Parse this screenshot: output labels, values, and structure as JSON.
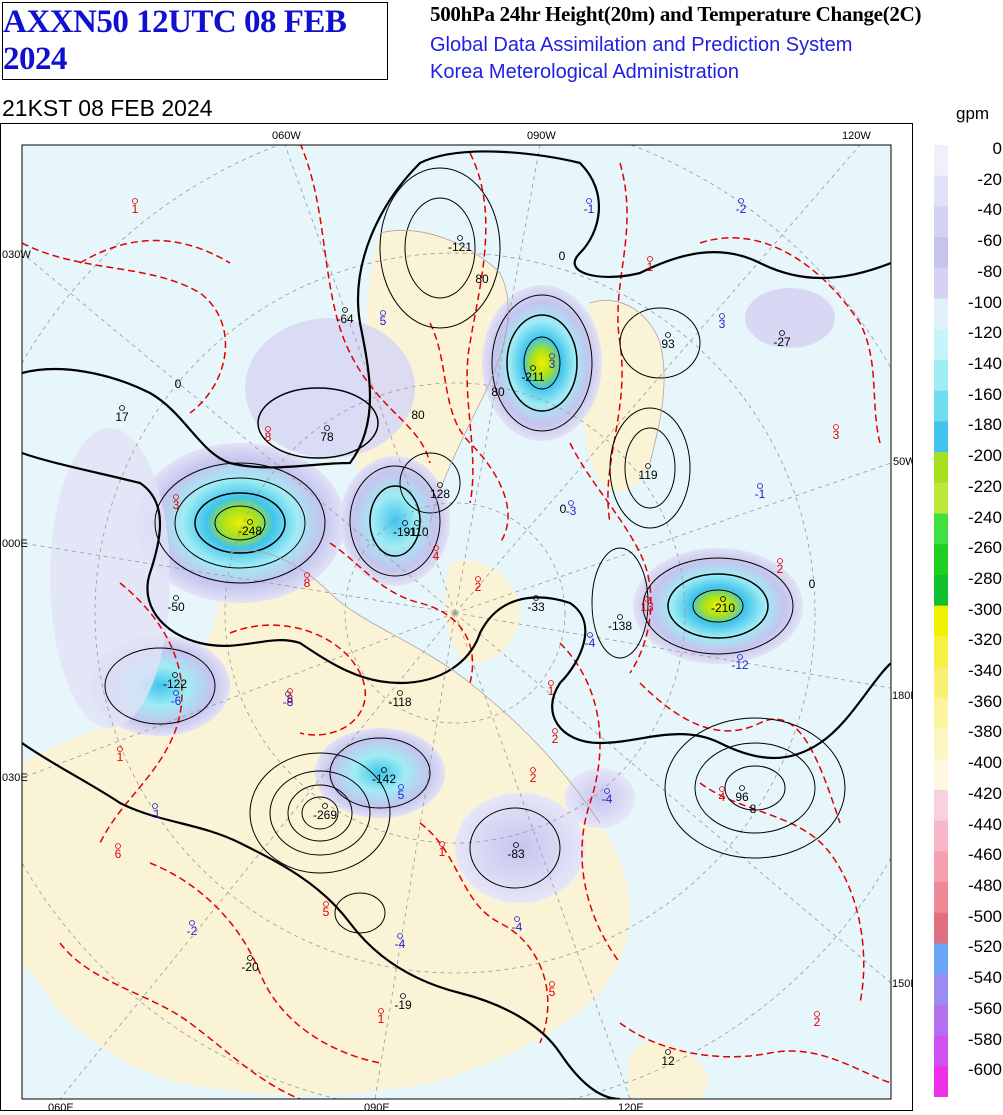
{
  "header": {
    "chart_code": "AXXN50 12UTC 08 FEB 2024",
    "product_title": "500hPa 24hr Height(20m) and Temperature Change(2C)",
    "agency_line_1": "Global Data Assimilation and Prediction System",
    "agency_line_2": "Korea Meterological Administration",
    "valid_time": "21KST 08 FEB 2024"
  },
  "legend": {
    "unit": "gpm",
    "levels": [
      "0",
      "-20",
      "-40",
      "-60",
      "-80",
      "-100",
      "-120",
      "-140",
      "-160",
      "-180",
      "-200",
      "-220",
      "-240",
      "-260",
      "-280",
      "-300",
      "-320",
      "-340",
      "-360",
      "-380",
      "-400",
      "-420",
      "-440",
      "-460",
      "-480",
      "-500",
      "-520",
      "-540",
      "-560",
      "-580",
      "-600"
    ],
    "colors": [
      "#f0f0fa",
      "#e2e2f6",
      "#d2d2f2",
      "#c4c4ee",
      "#d6d0f4",
      "#e0f2f8",
      "#c6f4f8",
      "#a0ecf4",
      "#70dcf0",
      "#40c4ec",
      "#a6e020",
      "#bce638",
      "#40e040",
      "#20d020",
      "#10c030",
      "#f0f000",
      "#f6f040",
      "#f8f070",
      "#faf4a0",
      "#fcf6c4",
      "#fef8e0",
      "#f8d0e0",
      "#f6b8c8",
      "#f4a0b0",
      "#f08898",
      "#e07080",
      "#6aa6f8",
      "#9a8cf0",
      "#b070f0",
      "#d050f0",
      "#f030e8"
    ]
  },
  "map": {
    "longitude_labels": {
      "top": [
        "060W",
        "090W",
        "120W"
      ],
      "bottom": [
        "060E",
        "090E",
        "120E"
      ],
      "left": [
        "030W",
        "000E",
        "030E"
      ],
      "right": [
        "50W",
        "180E",
        "150E"
      ]
    },
    "colors": {
      "ocean": "#e6f6fb",
      "land": "#fbf3d6",
      "height_contour": "#000000",
      "temperature_contour": "#e00000",
      "neg_temp_label": "#2020d0",
      "pos_temp_label": "#e00000"
    },
    "height_centers": [
      "-121",
      "-64",
      "78",
      "17",
      "-211",
      "93",
      "-27",
      "128",
      "119",
      "-248",
      "-191",
      "-110",
      "-33",
      "-138",
      "-210",
      "-50",
      "-122",
      "-118",
      "-142",
      "-269",
      "-83",
      "96",
      "-20",
      "-19",
      "12"
    ],
    "contour_values": [
      "0",
      "80",
      "80",
      "0",
      "80",
      "0",
      "0",
      "8"
    ],
    "temp_labels_red": [
      "1",
      "1",
      "3",
      "1",
      "8",
      "4",
      "2",
      "13",
      "2",
      "8",
      "8",
      "5",
      "1",
      "1",
      "2",
      "4",
      "1",
      "5",
      "6",
      "2",
      "2",
      "3"
    ],
    "temp_labels_blue": [
      "-1",
      "-2",
      "5",
      "3",
      "-1",
      "-3",
      "-4",
      "-12",
      "-6",
      "-8",
      "5",
      "-4",
      "-1",
      "-4",
      "-2",
      "-4",
      "3"
    ]
  }
}
